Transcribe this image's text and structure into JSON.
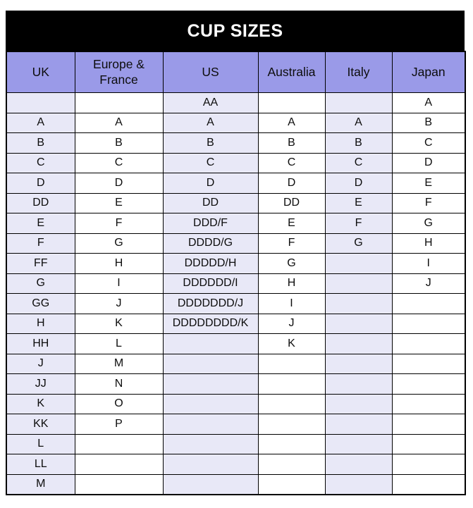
{
  "title": "CUP SIZES",
  "table": {
    "columns": [
      "UK",
      "Europe & France",
      "US",
      "Australia",
      "Italy",
      "Japan"
    ],
    "rows": [
      [
        "",
        "",
        "AA",
        "",
        "",
        "A"
      ],
      [
        "A",
        "A",
        "A",
        "A",
        "A",
        "B"
      ],
      [
        "B",
        "B",
        "B",
        "B",
        "B",
        "C"
      ],
      [
        "C",
        "C",
        "C",
        "C",
        "C",
        "D"
      ],
      [
        "D",
        "D",
        "D",
        "D",
        "D",
        "E"
      ],
      [
        "DD",
        "E",
        "DD",
        "DD",
        "E",
        "F"
      ],
      [
        "E",
        "F",
        "DDD/F",
        "E",
        "F",
        "G"
      ],
      [
        "F",
        "G",
        "DDDD/G",
        "F",
        "G",
        "H"
      ],
      [
        "FF",
        "H",
        "DDDDD/H",
        "G",
        "",
        "I"
      ],
      [
        "G",
        "I",
        "DDDDDD/I",
        "H",
        "",
        "J"
      ],
      [
        "GG",
        "J",
        "DDDDDDD/J",
        "I",
        "",
        ""
      ],
      [
        "H",
        "K",
        "DDDDDDDD/K",
        "J",
        "",
        ""
      ],
      [
        "HH",
        "L",
        "",
        "K",
        "",
        ""
      ],
      [
        "J",
        "M",
        "",
        "",
        "",
        ""
      ],
      [
        "JJ",
        "N",
        "",
        "",
        "",
        ""
      ],
      [
        "K",
        "O",
        "",
        "",
        "",
        ""
      ],
      [
        "KK",
        "P",
        "",
        "",
        "",
        ""
      ],
      [
        "L",
        "",
        "",
        "",
        "",
        ""
      ],
      [
        "LL",
        "",
        "",
        "",
        "",
        ""
      ],
      [
        "M",
        "",
        "",
        "",
        "",
        ""
      ]
    ]
  },
  "colors": {
    "title_bg": "#000000",
    "title_fg": "#ffffff",
    "header_bg": "#9a9ae8",
    "stripe_bg": "#e8e8f7",
    "border": "#000000"
  }
}
